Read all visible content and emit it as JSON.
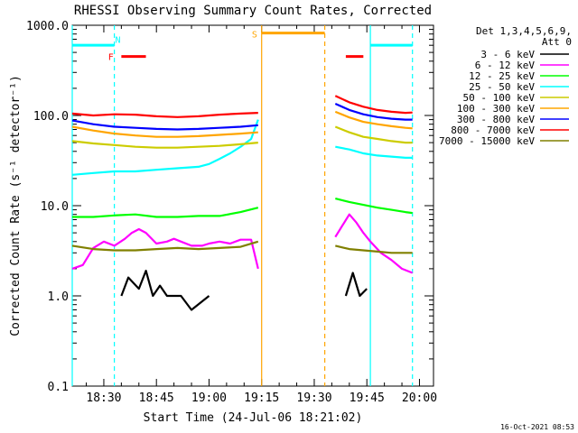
{
  "chart_data": {
    "type": "line",
    "title": "RHESSI Observing Summary Count Rates, Corrected",
    "xlabel": "Start Time (24-Jul-06 18:21:02)",
    "ylabel": "Corrected Count Rate (s⁻¹ detector⁻¹)",
    "ylog": true,
    "ylim": [
      0.1,
      1000
    ],
    "xlim_minutes_of_day": [
      1101,
      1204
    ],
    "x_ticks": [
      {
        "t": 1110,
        "label": "18:30"
      },
      {
        "t": 1125,
        "label": "18:45"
      },
      {
        "t": 1140,
        "label": "19:00"
      },
      {
        "t": 1155,
        "label": "19:15"
      },
      {
        "t": 1170,
        "label": "19:30"
      },
      {
        "t": 1185,
        "label": "19:45"
      },
      {
        "t": 1200,
        "label": "20:00"
      }
    ],
    "y_ticks": [
      {
        "v": 0.1,
        "label": "0.1"
      },
      {
        "v": 1,
        "label": "1.0"
      },
      {
        "v": 10,
        "label": "10.0"
      },
      {
        "v": 100,
        "label": "100.0"
      },
      {
        "v": 1000,
        "label": "1000.0"
      }
    ],
    "legend": {
      "placement": "right",
      "header": [
        "Det 1,3,4,5,6,9,",
        "Att 0"
      ]
    },
    "data_gap": {
      "start": "19:15",
      "end": "19:36"
    },
    "series": [
      {
        "name": "3 - 6 keV",
        "color": "#000000",
        "segments": [
          {
            "x": [
              "18:35",
              "18:37",
              "18:40",
              "18:42",
              "18:44",
              "18:46",
              "18:48",
              "18:50",
              "18:52",
              "18:55",
              "19:00"
            ],
            "y": [
              1.0,
              1.6,
              1.2,
              1.9,
              1.0,
              1.3,
              1.0,
              1.0,
              1.0,
              0.7,
              1.0
            ]
          },
          {
            "x": [
              "19:39",
              "19:41",
              "19:43",
              "19:45"
            ],
            "y": [
              1.0,
              1.8,
              1.0,
              1.2
            ]
          }
        ]
      },
      {
        "name": "6 - 12 keV",
        "color": "#ff00ff",
        "segments": [
          {
            "x": [
              "18:21",
              "18:24",
              "18:27",
              "18:30",
              "18:33",
              "18:36",
              "18:38",
              "18:40",
              "18:42",
              "18:45",
              "18:48",
              "18:50",
              "18:52",
              "18:55",
              "18:58",
              "19:00",
              "19:03",
              "19:06",
              "19:09",
              "19:12",
              "19:14"
            ],
            "y": [
              2.0,
              2.2,
              3.4,
              4.0,
              3.6,
              4.3,
              5.0,
              5.5,
              5.0,
              3.8,
              4.0,
              4.3,
              4.0,
              3.6,
              3.6,
              3.8,
              4.0,
              3.8,
              4.2,
              4.2,
              2.0
            ]
          },
          {
            "x": [
              "19:36",
              "19:38",
              "19:40",
              "19:42",
              "19:44",
              "19:46",
              "19:49",
              "19:52",
              "19:55",
              "19:58"
            ],
            "y": [
              4.5,
              6.0,
              8.0,
              6.5,
              5.0,
              4.0,
              3.0,
              2.5,
              2.0,
              1.8
            ]
          }
        ]
      },
      {
        "name": "12 - 25 keV",
        "color": "#00ff00",
        "segments": [
          {
            "x": [
              "18:21",
              "18:27",
              "18:33",
              "18:39",
              "18:45",
              "18:51",
              "18:57",
              "19:03",
              "19:09",
              "19:14"
            ],
            "y": [
              7.5,
              7.5,
              7.8,
              8.0,
              7.5,
              7.5,
              7.7,
              7.7,
              8.5,
              9.5
            ]
          },
          {
            "x": [
              "19:36",
              "19:40",
              "19:44",
              "19:48",
              "19:52",
              "19:56",
              "19:58"
            ],
            "y": [
              12.0,
              11.0,
              10.2,
              9.5,
              9.0,
              8.5,
              8.3
            ]
          }
        ]
      },
      {
        "name": "25 - 50 keV",
        "color": "#00ffff",
        "segments": [
          {
            "x": [
              "18:21",
              "18:27",
              "18:33",
              "18:39",
              "18:45",
              "18:51",
              "18:57",
              "19:00",
              "19:03",
              "19:06",
              "19:09",
              "19:12",
              "19:14"
            ],
            "y": [
              22,
              23,
              24,
              24,
              25,
              26,
              27,
              29,
              33,
              38,
              45,
              55,
              90
            ]
          },
          {
            "x": [
              "19:36",
              "19:40",
              "19:44",
              "19:48",
              "19:52",
              "19:56",
              "19:58"
            ],
            "y": [
              45,
              42,
              38,
              36,
              35,
              34,
              34
            ]
          }
        ]
      },
      {
        "name": "50 - 100 keV",
        "color": "#cccc00",
        "segments": [
          {
            "x": [
              "18:21",
              "18:27",
              "18:33",
              "18:39",
              "18:45",
              "18:51",
              "18:57",
              "19:03",
              "19:09",
              "19:14"
            ],
            "y": [
              52,
              49,
              47,
              45,
              44,
              44,
              45,
              46,
              48,
              50
            ]
          },
          {
            "x": [
              "19:36",
              "19:40",
              "19:44",
              "19:48",
              "19:52",
              "19:56",
              "19:58"
            ],
            "y": [
              75,
              65,
              58,
              55,
              52,
              50,
              50
            ]
          }
        ]
      },
      {
        "name": "100 - 300 keV",
        "color": "#ffa500",
        "segments": [
          {
            "x": [
              "18:21",
              "18:27",
              "18:33",
              "18:39",
              "18:45",
              "18:51",
              "18:57",
              "19:03",
              "19:09",
              "19:14"
            ],
            "y": [
              75,
              68,
              63,
              60,
              58,
              58,
              59,
              61,
              63,
              65
            ]
          },
          {
            "x": [
              "19:36",
              "19:40",
              "19:44",
              "19:48",
              "19:52",
              "19:56",
              "19:58"
            ],
            "y": [
              110,
              95,
              85,
              80,
              76,
              73,
              72
            ]
          }
        ]
      },
      {
        "name": "300 - 800 keV",
        "color": "#0000ff",
        "segments": [
          {
            "x": [
              "18:21",
              "18:27",
              "18:33",
              "18:39",
              "18:45",
              "18:51",
              "18:57",
              "19:03",
              "19:09",
              "19:14"
            ],
            "y": [
              88,
              80,
              75,
              73,
              71,
              70,
              71,
              73,
              75,
              78
            ]
          },
          {
            "x": [
              "19:36",
              "19:40",
              "19:44",
              "19:48",
              "19:52",
              "19:56",
              "19:58"
            ],
            "y": [
              135,
              115,
              103,
              96,
              92,
              90,
              90
            ]
          }
        ]
      },
      {
        "name": "800 - 7000 keV",
        "color": "#ff0000",
        "segments": [
          {
            "x": [
              "18:21",
              "18:27",
              "18:33",
              "18:39",
              "18:45",
              "18:51",
              "18:57",
              "19:03",
              "19:09",
              "19:14"
            ],
            "y": [
              105,
              100,
              103,
              102,
              98,
              96,
              98,
              102,
              105,
              107
            ]
          },
          {
            "x": [
              "19:36",
              "19:40",
              "19:44",
              "19:48",
              "19:52",
              "19:56",
              "19:58"
            ],
            "y": [
              165,
              140,
              125,
              115,
              110,
              107,
              108
            ]
          }
        ]
      },
      {
        "name": "7000 - 15000 keV",
        "color": "#808000",
        "segments": [
          {
            "x": [
              "18:21",
              "18:27",
              "18:33",
              "18:39",
              "18:45",
              "18:51",
              "18:57",
              "19:03",
              "19:09",
              "19:14"
            ],
            "y": [
              3.6,
              3.3,
              3.2,
              3.2,
              3.3,
              3.4,
              3.3,
              3.4,
              3.5,
              4.0
            ]
          },
          {
            "x": [
              "19:36",
              "19:40",
              "19:44",
              "19:48",
              "19:52",
              "19:56",
              "19:58"
            ],
            "y": [
              3.6,
              3.3,
              3.2,
              3.1,
              3.0,
              3.0,
              3.0
            ]
          }
        ]
      }
    ],
    "vertical_markers": [
      {
        "t": "18:21",
        "color": "#00ffff",
        "style": "solid"
      },
      {
        "t": "18:33",
        "color": "#00ffff",
        "style": "dashed"
      },
      {
        "t": "19:15",
        "color": "#ffa500",
        "style": "solid"
      },
      {
        "t": "19:33",
        "color": "#ffa500",
        "style": "dashed"
      },
      {
        "t": "19:46",
        "color": "#00ffff",
        "style": "solid"
      },
      {
        "t": "19:58",
        "color": "#00ffff",
        "style": "dashed"
      }
    ],
    "flag_bars": [
      {
        "start": "18:21",
        "end": "18:33",
        "y": 600,
        "color": "#00ffff"
      },
      {
        "start": "19:46",
        "end": "19:58",
        "y": 600,
        "color": "#00ffff"
      },
      {
        "start": "18:35",
        "end": "18:42",
        "y": 450,
        "color": "#ff0000"
      },
      {
        "start": "19:39",
        "end": "19:44",
        "y": 450,
        "color": "#ff0000"
      },
      {
        "start": "19:15",
        "end": "19:33",
        "y": 820,
        "color": "#ffa500"
      }
    ],
    "flag_labels": [
      {
        "text": "N",
        "t": "18:34",
        "y": 700,
        "color": "#00ffff"
      },
      {
        "text": "F",
        "t": "18:32",
        "y": 450,
        "color": "#ff0000"
      },
      {
        "text": "S",
        "t": "19:13",
        "y": 800,
        "color": "#ffa500"
      }
    ],
    "timestamp": "16-Oct-2021 08:53"
  }
}
